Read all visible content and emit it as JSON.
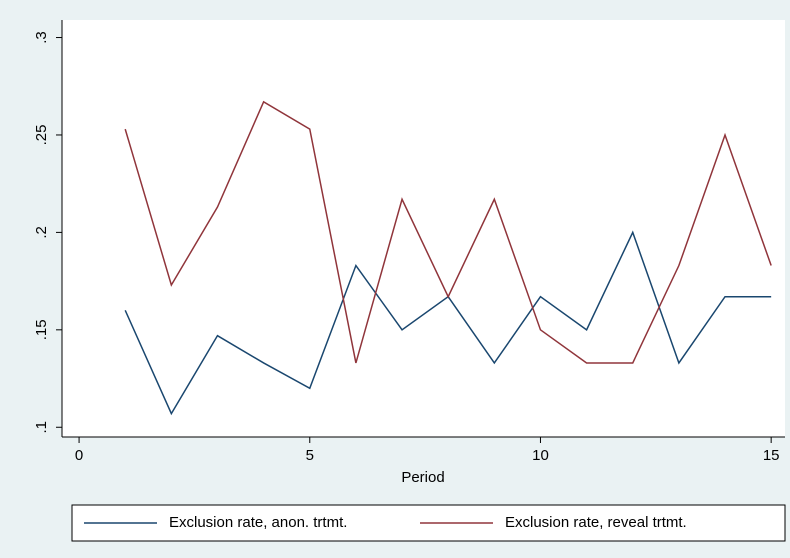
{
  "chart_data": {
    "type": "line",
    "x": [
      1,
      2,
      3,
      4,
      5,
      6,
      7,
      8,
      9,
      10,
      11,
      12,
      13,
      14,
      15
    ],
    "series": [
      {
        "name": "Exclusion rate, anon. trtmt.",
        "color": "#1a476f",
        "values": [
          0.16,
          0.107,
          0.147,
          0.133,
          0.12,
          0.183,
          0.15,
          0.167,
          0.133,
          0.167,
          0.15,
          0.2,
          0.133,
          0.167,
          0.167
        ]
      },
      {
        "name": "Exclusion rate, reveal trtmt.",
        "color": "#90353b",
        "values": [
          0.253,
          0.173,
          0.213,
          0.267,
          0.253,
          0.133,
          0.217,
          0.167,
          0.217,
          0.15,
          0.133,
          0.133,
          0.183,
          0.25,
          0.183
        ]
      }
    ],
    "x_label": "Period",
    "xlim": [
      -0.37,
      15.3
    ],
    "xticks": [
      0,
      5,
      10,
      15
    ],
    "ylim": [
      0.095,
      0.309
    ],
    "yticks": [
      {
        "value": 0.1,
        "label": ".1"
      },
      {
        "value": 0.15,
        "label": ".15"
      },
      {
        "value": 0.2,
        "label": ".2"
      },
      {
        "value": 0.25,
        "label": ".25"
      },
      {
        "value": 0.3,
        "label": ".3"
      }
    ],
    "grid": false,
    "legend": "bottom"
  }
}
